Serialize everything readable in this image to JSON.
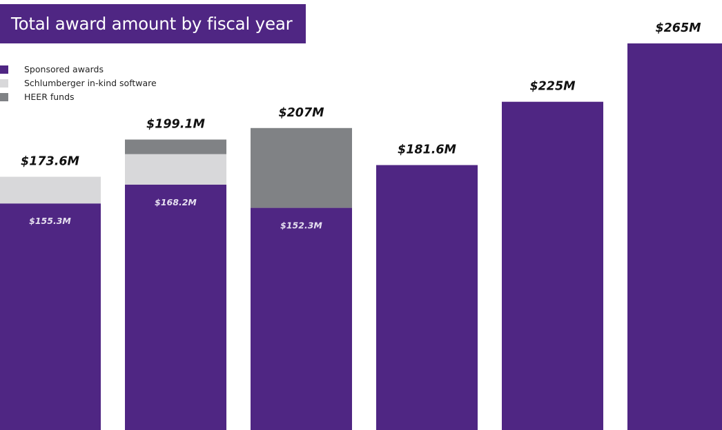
{
  "chart_data": {
    "type": "bar",
    "title": "Total award amount by fiscal year",
    "categories": [
      "",
      "",
      "",
      "",
      "",
      ""
    ],
    "series": [
      {
        "name": "Sponsored awards",
        "values": [
          155.3,
          168.2,
          152.3,
          181.6,
          225,
          265
        ]
      },
      {
        "name": "Schlumberger in-kind software",
        "values": [
          18.3,
          20.9,
          0,
          0,
          0,
          0
        ]
      },
      {
        "name": "HEER funds",
        "values": [
          0,
          10,
          54.7,
          0,
          0,
          0
        ]
      }
    ],
    "total_labels": [
      "$173.6M",
      "$199.1M",
      "$207M",
      "$181.6M",
      "$225M",
      "$265M"
    ],
    "inner_labels": [
      "$155.3M",
      "$168.2M",
      "$152.3M",
      "",
      "",
      ""
    ],
    "ylim": [
      0,
      265
    ],
    "legend": "top-left",
    "grid": false
  },
  "colors": {
    "sponsored": "#4f2683",
    "schlumberger": "#d8d8da",
    "heer": "#808285",
    "title_bg": "#4f2683",
    "total_label": "#111111",
    "inner_label": "#e6e0f0"
  }
}
